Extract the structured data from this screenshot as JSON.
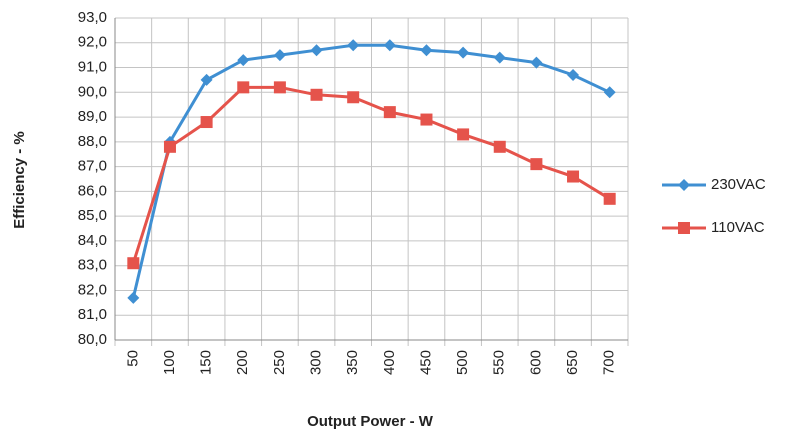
{
  "chart_data": {
    "type": "line",
    "xlabel": "Output Power - W",
    "ylabel": "Efficiency - %",
    "categories": [
      "50",
      "100",
      "150",
      "200",
      "250",
      "300",
      "350",
      "400",
      "450",
      "500",
      "550",
      "600",
      "650",
      "700"
    ],
    "series": [
      {
        "name": "230VAC",
        "color": "#3f8fd2",
        "marker": "diamond",
        "values": [
          81.7,
          88.0,
          90.5,
          91.3,
          91.5,
          91.7,
          91.9,
          91.9,
          91.7,
          91.6,
          91.4,
          91.2,
          90.7,
          90.0
        ]
      },
      {
        "name": "110VAC",
        "color": "#e5534b",
        "marker": "square",
        "values": [
          83.1,
          87.8,
          88.8,
          90.2,
          90.2,
          89.9,
          89.8,
          89.2,
          88.9,
          88.3,
          87.8,
          87.1,
          86.6,
          85.7
        ]
      }
    ],
    "ylim": [
      80,
      93
    ],
    "yticks": [
      {
        "value": 80,
        "label": "80,0"
      },
      {
        "value": 81,
        "label": "81,0"
      },
      {
        "value": 82,
        "label": "82,0"
      },
      {
        "value": 83,
        "label": "83,0"
      },
      {
        "value": 84,
        "label": "84,0"
      },
      {
        "value": 85,
        "label": "85,0"
      },
      {
        "value": 86,
        "label": "86,0"
      },
      {
        "value": 87,
        "label": "87,0"
      },
      {
        "value": 88,
        "label": "88,0"
      },
      {
        "value": 89,
        "label": "89,0"
      },
      {
        "value": 90,
        "label": "90,0"
      },
      {
        "value": 91,
        "label": "91,0"
      },
      {
        "value": 92,
        "label": "92,0"
      },
      {
        "value": 93,
        "label": "93,0"
      }
    ],
    "grid": true,
    "legend": "right"
  }
}
